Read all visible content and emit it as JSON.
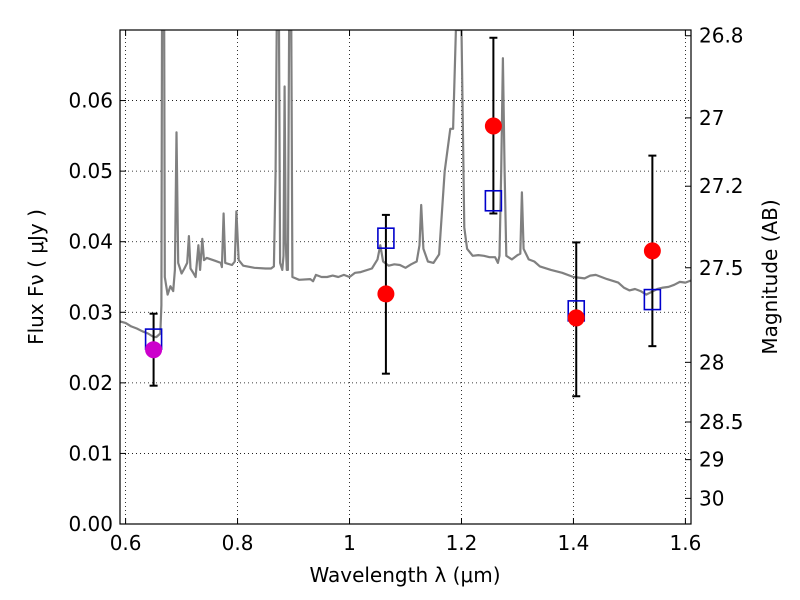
{
  "chart_data": {
    "type": "scatter",
    "xlabel": "Wavelength  λ (μm)",
    "ylabel": "Flux  Fν  ( μJy )",
    "ylabel_right": "Magnitude (AB)",
    "xlim": [
      0.59,
      1.61
    ],
    "ylim": [
      0.0,
      0.07
    ],
    "grid": true,
    "x_ticks": [
      0.6,
      0.8,
      1.0,
      1.2,
      1.4,
      1.6
    ],
    "x_tick_labels": [
      "0.6",
      "0.8",
      "1",
      "1.2",
      "1.4",
      "1.6"
    ],
    "y_ticks": [
      0.0,
      0.01,
      0.02,
      0.03,
      0.04,
      0.05,
      0.06
    ],
    "y_tick_labels": [
      "0.00",
      "0.01",
      "0.02",
      "0.03",
      "0.04",
      "0.05",
      "0.06"
    ],
    "mag_ticks": [
      26.8,
      27,
      27.2,
      27.5,
      28,
      28.5,
      29,
      30
    ],
    "mag_tick_labels": [
      "26.8",
      "27",
      "27.2",
      "27.5",
      "28",
      "28.5",
      "29",
      "30"
    ],
    "series": [
      {
        "marker": "circle-filled",
        "color": "#ff0000",
        "points": [
          {
            "x": 1.065,
            "y": 0.0326
          },
          {
            "x": 1.257,
            "y": 0.0564
          },
          {
            "x": 1.405,
            "y": 0.0292
          },
          {
            "x": 1.541,
            "y": 0.0387
          }
        ]
      },
      {
        "marker": "circle-filled",
        "color": "#cc00cc",
        "points": [
          {
            "x": 0.65,
            "y": 0.0247
          }
        ]
      },
      {
        "marker": "square-open",
        "color": "#0000cc",
        "points": [
          {
            "x": 0.65,
            "y": 0.0262
          },
          {
            "x": 1.065,
            "y": 0.0405
          },
          {
            "x": 1.257,
            "y": 0.0458
          },
          {
            "x": 1.405,
            "y": 0.0302
          },
          {
            "x": 1.541,
            "y": 0.0318
          }
        ]
      },
      {
        "marker": "errorbar",
        "color": "#000000",
        "points": [
          {
            "x": 0.65,
            "y": 0.0247,
            "ylo": 0.0196,
            "yhi": 0.0298
          },
          {
            "x": 1.065,
            "y": 0.0326,
            "ylo": 0.0213,
            "yhi": 0.0438
          },
          {
            "x": 1.257,
            "y": 0.0564,
            "ylo": 0.044,
            "yhi": 0.0689
          },
          {
            "x": 1.405,
            "y": 0.0292,
            "ylo": 0.0181,
            "yhi": 0.0399
          },
          {
            "x": 1.541,
            "y": 0.0387,
            "ylo": 0.0252,
            "yhi": 0.0522
          }
        ]
      },
      {
        "marker": "line",
        "color": "#808080",
        "points": [
          [
            0.59,
            0.0287
          ],
          [
            0.6,
            0.0285
          ],
          [
            0.61,
            0.028
          ],
          [
            0.62,
            0.0277
          ],
          [
            0.63,
            0.0273
          ],
          [
            0.64,
            0.027
          ],
          [
            0.65,
            0.0265
          ],
          [
            0.655,
            0.0265
          ],
          [
            0.662,
            0.027
          ],
          [
            0.664,
            0.031
          ],
          [
            0.665,
            0.07
          ],
          [
            0.669,
            0.07
          ],
          [
            0.67,
            0.035
          ],
          [
            0.675,
            0.0325
          ],
          [
            0.68,
            0.0337
          ],
          [
            0.685,
            0.033
          ],
          [
            0.688,
            0.036
          ],
          [
            0.691,
            0.0555
          ],
          [
            0.694,
            0.037
          ],
          [
            0.7,
            0.0355
          ],
          [
            0.705,
            0.0362
          ],
          [
            0.71,
            0.037
          ],
          [
            0.713,
            0.0408
          ],
          [
            0.716,
            0.0362
          ],
          [
            0.72,
            0.0357
          ],
          [
            0.725,
            0.035
          ],
          [
            0.73,
            0.0395
          ],
          [
            0.733,
            0.036
          ],
          [
            0.737,
            0.0404
          ],
          [
            0.74,
            0.0374
          ],
          [
            0.745,
            0.0377
          ],
          [
            0.76,
            0.0373
          ],
          [
            0.77,
            0.037
          ],
          [
            0.772,
            0.0364
          ],
          [
            0.775,
            0.044
          ],
          [
            0.778,
            0.037
          ],
          [
            0.79,
            0.0367
          ],
          [
            0.795,
            0.0372
          ],
          [
            0.798,
            0.0443
          ],
          [
            0.802,
            0.0374
          ],
          [
            0.81,
            0.0366
          ],
          [
            0.83,
            0.0363
          ],
          [
            0.85,
            0.0362
          ],
          [
            0.86,
            0.0362
          ],
          [
            0.865,
            0.0365
          ],
          [
            0.868,
            0.05
          ],
          [
            0.87,
            0.07
          ],
          [
            0.874,
            0.07
          ],
          [
            0.876,
            0.037
          ],
          [
            0.88,
            0.036
          ],
          [
            0.882,
            0.038
          ],
          [
            0.884,
            0.062
          ],
          [
            0.886,
            0.04
          ],
          [
            0.888,
            0.036
          ],
          [
            0.89,
            0.036
          ],
          [
            0.892,
            0.07
          ],
          [
            0.896,
            0.07
          ],
          [
            0.898,
            0.035
          ],
          [
            0.91,
            0.0346
          ],
          [
            0.93,
            0.0347
          ],
          [
            0.935,
            0.0344
          ],
          [
            0.94,
            0.0353
          ],
          [
            0.95,
            0.035
          ],
          [
            0.96,
            0.035
          ],
          [
            0.97,
            0.0352
          ],
          [
            0.98,
            0.035
          ],
          [
            0.99,
            0.0353
          ],
          [
            1.0,
            0.035
          ],
          [
            1.01,
            0.0356
          ],
          [
            1.02,
            0.0357
          ],
          [
            1.04,
            0.0362
          ],
          [
            1.05,
            0.0375
          ],
          [
            1.055,
            0.0395
          ],
          [
            1.06,
            0.0372
          ],
          [
            1.07,
            0.0366
          ],
          [
            1.08,
            0.0368
          ],
          [
            1.09,
            0.0367
          ],
          [
            1.1,
            0.0363
          ],
          [
            1.11,
            0.0368
          ],
          [
            1.12,
            0.0372
          ],
          [
            1.125,
            0.0395
          ],
          [
            1.128,
            0.0452
          ],
          [
            1.132,
            0.039
          ],
          [
            1.14,
            0.0372
          ],
          [
            1.15,
            0.037
          ],
          [
            1.16,
            0.0382
          ],
          [
            1.17,
            0.05
          ],
          [
            1.18,
            0.056
          ],
          [
            1.185,
            0.056
          ],
          [
            1.19,
            0.07
          ],
          [
            1.2,
            0.07
          ],
          [
            1.205,
            0.042
          ],
          [
            1.21,
            0.039
          ],
          [
            1.22,
            0.038
          ],
          [
            1.23,
            0.0381
          ],
          [
            1.24,
            0.038
          ],
          [
            1.25,
            0.0378
          ],
          [
            1.26,
            0.0378
          ],
          [
            1.265,
            0.037
          ],
          [
            1.268,
            0.038
          ],
          [
            1.271,
            0.05
          ],
          [
            1.274,
            0.066
          ],
          [
            1.277,
            0.05
          ],
          [
            1.28,
            0.038
          ],
          [
            1.29,
            0.0375
          ],
          [
            1.3,
            0.0381
          ],
          [
            1.305,
            0.0383
          ],
          [
            1.308,
            0.047
          ],
          [
            1.311,
            0.039
          ],
          [
            1.32,
            0.0375
          ],
          [
            1.33,
            0.0372
          ],
          [
            1.34,
            0.0365
          ],
          [
            1.36,
            0.036
          ],
          [
            1.38,
            0.0356
          ],
          [
            1.4,
            0.035
          ],
          [
            1.42,
            0.0348
          ],
          [
            1.43,
            0.0352
          ],
          [
            1.44,
            0.0353
          ],
          [
            1.45,
            0.035
          ],
          [
            1.46,
            0.0347
          ],
          [
            1.48,
            0.0342
          ],
          [
            1.49,
            0.0335
          ],
          [
            1.5,
            0.0331
          ],
          [
            1.51,
            0.0333
          ],
          [
            1.52,
            0.033
          ],
          [
            1.53,
            0.0325
          ],
          [
            1.54,
            0.0329
          ],
          [
            1.55,
            0.0333
          ],
          [
            1.56,
            0.0335
          ],
          [
            1.57,
            0.0336
          ],
          [
            1.58,
            0.0339
          ],
          [
            1.59,
            0.0343
          ],
          [
            1.6,
            0.0342
          ],
          [
            1.61,
            0.0345
          ]
        ]
      }
    ]
  }
}
